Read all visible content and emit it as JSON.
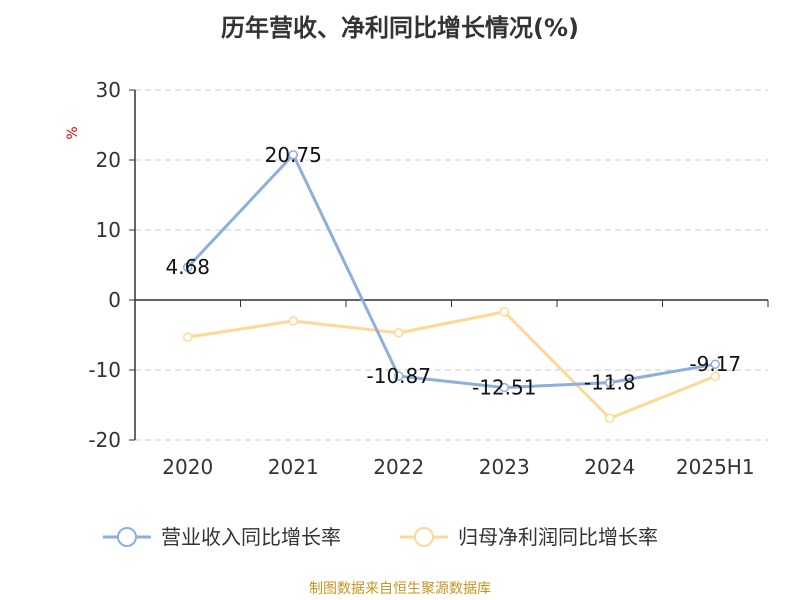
{
  "chart_data": {
    "type": "line",
    "title": "历年营收、净利同比增长情况(%)",
    "ylabel": "%",
    "xlabel": "",
    "categories": [
      "2020",
      "2021",
      "2022",
      "2023",
      "2024",
      "2025H1"
    ],
    "ylim": [
      -20,
      30
    ],
    "yticks": [
      30,
      20,
      10,
      0,
      -10,
      -20
    ],
    "grid": true,
    "legend_position": "bottom",
    "series": [
      {
        "name": "营业收入同比增长率",
        "color": "#8eaedd",
        "values": [
          4.68,
          20.75,
          -10.87,
          -12.51,
          -11.8,
          -9.17
        ],
        "labels": [
          "4.68",
          "20.75",
          "-10.87",
          "-12.51",
          "-11.8",
          "-9.17"
        ]
      },
      {
        "name": "归母净利润同比增长率",
        "color": "#fdd995",
        "values": [
          -5.3,
          -3.0,
          -4.7,
          -1.7,
          -16.9,
          -10.9
        ]
      }
    ]
  },
  "source": "制图数据来自恒生聚源数据库"
}
